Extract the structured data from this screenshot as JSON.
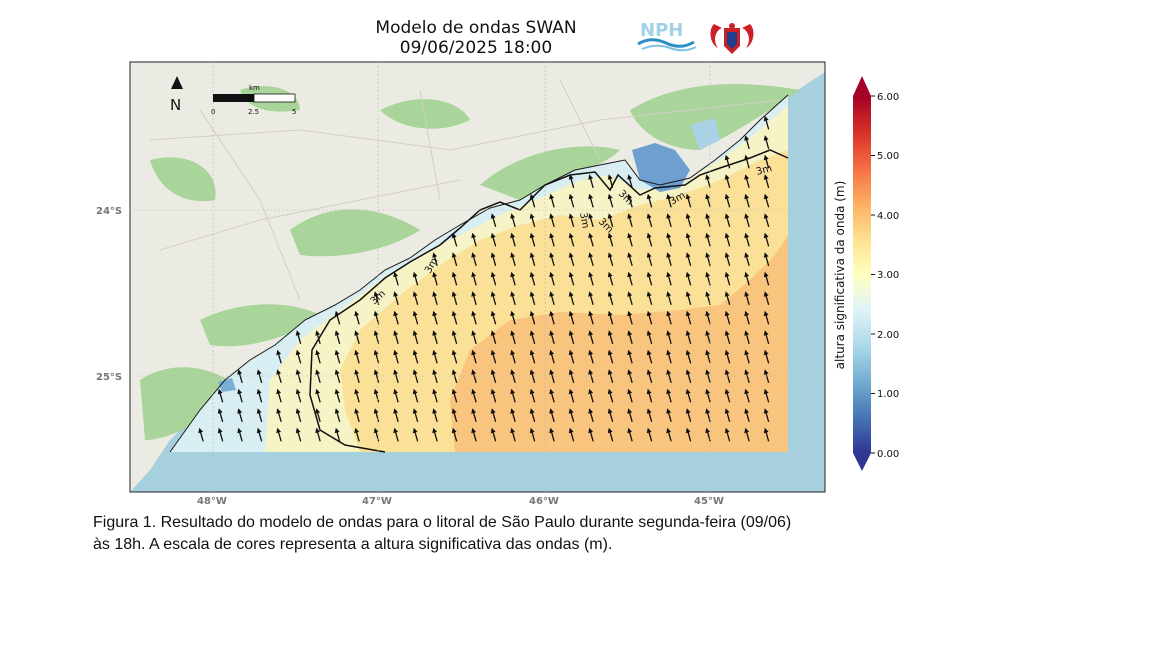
{
  "header": {
    "title_line1": "Modelo de ondas SWAN",
    "title_line2": "09/06/2025 18:00",
    "logo_text": "NPH"
  },
  "map": {
    "north_label": "N",
    "scale_unit": "km",
    "scale_ticks": [
      "0",
      "2.5",
      "5"
    ],
    "lon_labels": [
      "48°W",
      "47°W",
      "46°W",
      "45°W"
    ],
    "lat_labels": [
      "24°S",
      "25°S"
    ],
    "contour_label": "3m",
    "colors": {
      "ocean": "#a7d0df",
      "land": "#ecebe3",
      "forest": "#a9d49a",
      "wave_low": "#d8eef2",
      "wave_mid": "#f6f4c6",
      "wave_high": "#fbe198",
      "wave_peak": "#f9c47e"
    }
  },
  "colorbar": {
    "label": "altura significativa da onda (m)",
    "ticks": [
      "6.00",
      "5.00",
      "4.00",
      "3.00",
      "2.00",
      "1.00",
      "0.00"
    ],
    "colors": [
      "#a50026",
      "#d73027",
      "#f46d43",
      "#fdae61",
      "#fee090",
      "#ffffbf",
      "#e0f3f8",
      "#abd9e9",
      "#74add1",
      "#4575b4",
      "#313695"
    ]
  },
  "caption": {
    "line1": "Figura 1. Resultado do modelo de ondas para o litoral de São Paulo durante segunda-feira (09/06)",
    "line2": "às 18h. A escala de cores representa a altura significativa das ondas (m)."
  }
}
